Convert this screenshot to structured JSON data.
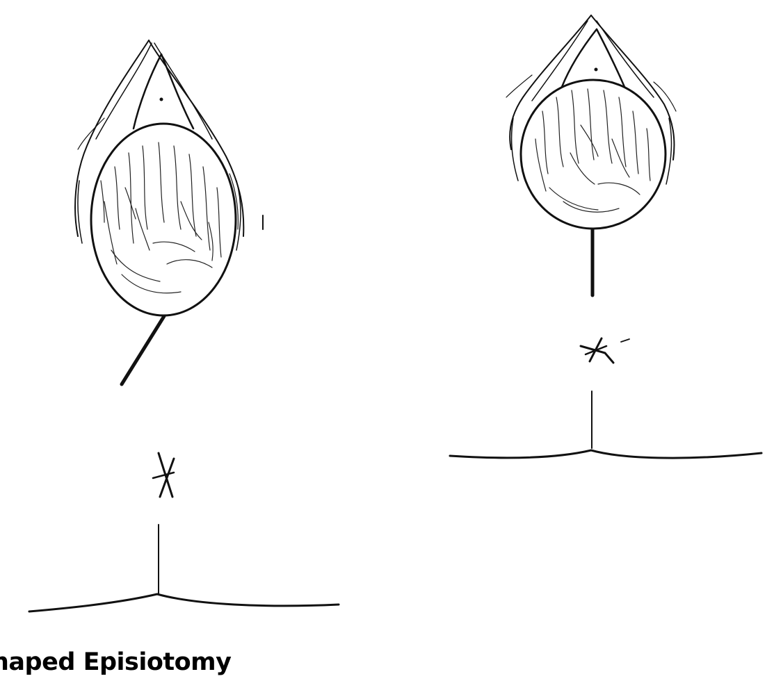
{
  "caption": "haped Episiotomy",
  "panels": [
    {
      "name": "left-panel",
      "incision": "mediolateral"
    },
    {
      "name": "right-panel",
      "incision": "median"
    }
  ],
  "colors": {
    "ink": "#111111",
    "background": "#ffffff"
  }
}
